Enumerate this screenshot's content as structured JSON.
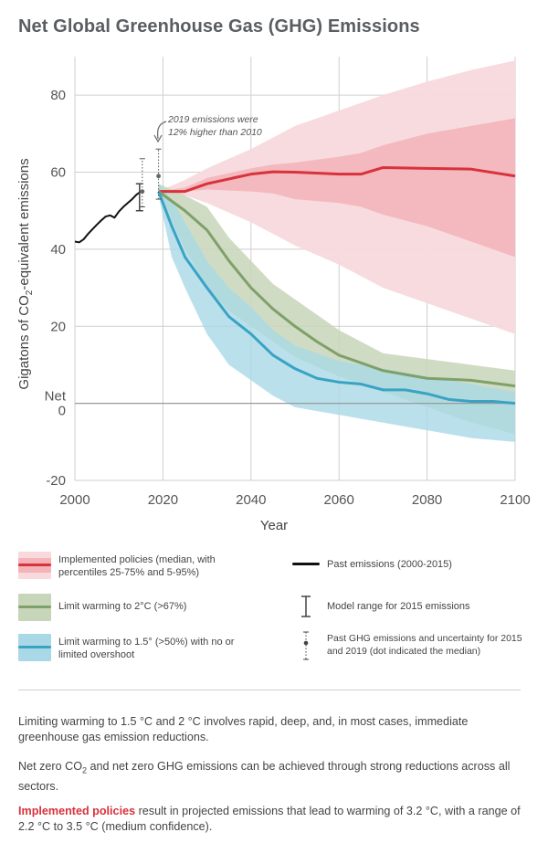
{
  "title": "Net Global Greenhouse Gas (GHG) Emissions",
  "chart_data": {
    "type": "area",
    "title": "Net Global Greenhouse Gas (GHG) Emissions",
    "xlabel": "Year",
    "ylabel_prefix": "Gigatons of CO",
    "ylabel_sub": "2",
    "ylabel_suffix": "-equivalent emissions",
    "xlim": [
      2000,
      2100
    ],
    "ylim": [
      -20,
      90
    ],
    "xticks": [
      "2000",
      "2020",
      "2040",
      "2060",
      "2080",
      "2100"
    ],
    "yticks": [
      {
        "v": 80,
        "label": "80"
      },
      {
        "v": 60,
        "label": "60"
      },
      {
        "v": 40,
        "label": "40"
      },
      {
        "v": 20,
        "label": "20"
      },
      {
        "v": -20,
        "label": "-20"
      }
    ],
    "net_label": "Net",
    "zero_label": "0",
    "annotation_line1": "2019 emissions were",
    "annotation_line2": "12% higher than 2010",
    "colors": {
      "implemented_outer": "#f8d9dc",
      "implemented_inner": "#f3b3b9",
      "implemented_line": "#d8323b",
      "two_degree_band": "#c7d6b8",
      "two_degree_line": "#7fa06a",
      "one_five_band": "#a9d9e6",
      "one_five_line": "#3aa3c4",
      "past": "#111111",
      "grid": "#cfcfcf",
      "zero_line": "#999999"
    },
    "past_emissions": {
      "name": "Past emissions (2000-2015)",
      "x": [
        2000,
        2001,
        2002,
        2003,
        2004,
        2005,
        2006,
        2007,
        2008,
        2009,
        2010,
        2011,
        2012,
        2013,
        2014,
        2015
      ],
      "y": [
        42,
        41.8,
        42.6,
        44.0,
        45.2,
        46.4,
        47.5,
        48.5,
        48.8,
        48.2,
        49.8,
        51.0,
        52.0,
        53.0,
        54.2,
        55.0
      ]
    },
    "series": [
      {
        "name": "Implemented policies",
        "x": [
          2019,
          2025,
          2030,
          2040,
          2045,
          2050,
          2060,
          2065,
          2070,
          2080,
          2090,
          2100
        ],
        "median": [
          55,
          55,
          57,
          59.5,
          60.1,
          60,
          59.5,
          59.5,
          61.2,
          61,
          60.8,
          59
        ],
        "p25": [
          55,
          55,
          55.5,
          55,
          54.5,
          53,
          52,
          51,
          49,
          46,
          42,
          38
        ],
        "p75": [
          55,
          56,
          58.5,
          61,
          62,
          62.5,
          64,
          65,
          67,
          70,
          72,
          74
        ],
        "p5": [
          55,
          54,
          52,
          47,
          44,
          41,
          36,
          33,
          30,
          26,
          22,
          18
        ],
        "p95": [
          55,
          58,
          61,
          66,
          69,
          72,
          76,
          78,
          80,
          83.5,
          86.5,
          89
        ]
      },
      {
        "name": "Limit warming to 2°C (>67%)",
        "x": [
          2019,
          2025,
          2030,
          2035,
          2040,
          2045,
          2050,
          2055,
          2060,
          2065,
          2070,
          2080,
          2090,
          2100
        ],
        "median": [
          55,
          50,
          45,
          37,
          30,
          24.5,
          20,
          16,
          12.5,
          10.5,
          8.5,
          6.5,
          6,
          4.5
        ],
        "low": [
          55,
          40,
          30,
          24,
          20,
          16,
          12,
          9.5,
          7,
          5,
          3,
          -1,
          -5,
          -8
        ],
        "high": [
          57,
          54,
          51,
          43,
          37,
          31,
          27,
          23,
          19,
          16,
          13,
          11.5,
          10,
          8.5
        ]
      },
      {
        "name": "Limit warming to 1.5° (>50%) with no or limited overshoot",
        "x": [
          2019,
          2022,
          2025,
          2030,
          2035,
          2040,
          2045,
          2050,
          2055,
          2060,
          2065,
          2070,
          2075,
          2080,
          2085,
          2090,
          2095,
          2100
        ],
        "median": [
          55,
          46,
          38,
          30,
          22.5,
          18,
          12.5,
          9,
          6.5,
          5.5,
          5,
          3.5,
          3.5,
          2.5,
          1,
          0.5,
          0.5,
          0
        ],
        "low": [
          54,
          38,
          30,
          18,
          10,
          6,
          2,
          -1,
          -2,
          -3,
          -4,
          -5,
          -6,
          -7,
          -8,
          -9,
          -9.5,
          -10
        ],
        "high": [
          57,
          53,
          47,
          37,
          30,
          25,
          19,
          15,
          13,
          11,
          10,
          9,
          8,
          7,
          6,
          5,
          4,
          3
        ]
      }
    ],
    "model_range_2015": {
      "x": 2015,
      "low": 50,
      "high": 57
    },
    "past_ghg_uncertainty": [
      {
        "x": 2015,
        "low": 51,
        "high": 63.5,
        "median": 55
      },
      {
        "x": 2019,
        "low": 53,
        "high": 66,
        "median": 59
      }
    ]
  },
  "legend": {
    "implemented": "Implemented policies (median, with percentiles 25-75% and 5-95%)",
    "past": "Past emissions (2000-2015)",
    "two_degree": "Limit warming to 2°C (>67%)",
    "model_range": "Model range for 2015 emissions",
    "one_five": "Limit warming to 1.5° (>50%) with no or limited overshoot",
    "uncertainty": "Past GHG emissions and uncertainty for 2015 and 2019 (dot indicated the median)"
  },
  "paragraphs": {
    "p1": "Limiting warming to 1.5 °C and 2 °C involves rapid, deep, and, in most cases, immediate greenhouse gas emission reductions.",
    "p2_prefix": "Net zero CO",
    "p2_sub": "2",
    "p2_suffix": " and net zero GHG emissions can be achieved through strong reductions across all sectors.",
    "p3_highlight": "Implemented policies",
    "p3_rest": " result in projected emissions that lead to warming of 3.2 °C, with a range of 2.2 °C to 3.5 °C (medium confidence)."
  }
}
